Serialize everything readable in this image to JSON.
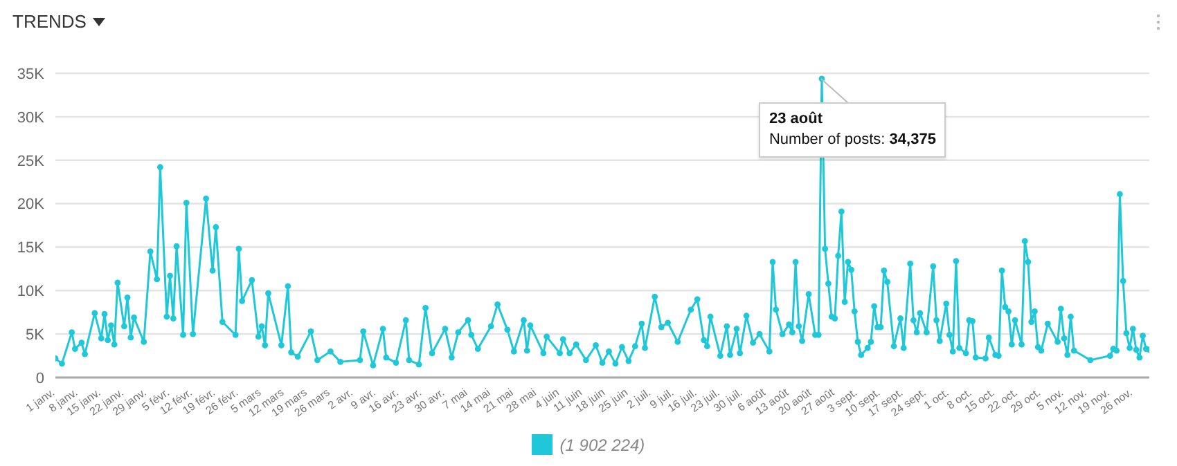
{
  "chart_data": {
    "type": "line",
    "title": "TRENDS",
    "xlim": [
      "--01-01",
      "--12-01"
    ],
    "xticks": [
      {
        "value": "--01-01",
        "label": "1 janv."
      },
      {
        "value": "--01-08",
        "label": "8 janv."
      },
      {
        "value": "--01-15",
        "label": "15 janv."
      },
      {
        "value": "--01-22",
        "label": "22 janv."
      },
      {
        "value": "--01-29",
        "label": "29 janv."
      },
      {
        "value": "--02-05",
        "label": "5 févr."
      },
      {
        "value": "--02-12",
        "label": "12 févr."
      },
      {
        "value": "--02-19",
        "label": "19 févr."
      },
      {
        "value": "--02-26",
        "label": "26 févr."
      },
      {
        "value": "--03-05",
        "label": "5 mars"
      },
      {
        "value": "--03-12",
        "label": "12 mars"
      },
      {
        "value": "--03-19",
        "label": "19 mars"
      },
      {
        "value": "--03-26",
        "label": "26 mars"
      },
      {
        "value": "--04-02",
        "label": "2 avr."
      },
      {
        "value": "--04-09",
        "label": "9 avr."
      },
      {
        "value": "--04-16",
        "label": "16 avr."
      },
      {
        "value": "--04-23",
        "label": "23 avr."
      },
      {
        "value": "--04-30",
        "label": "30 avr."
      },
      {
        "value": "--05-07",
        "label": "7 mai"
      },
      {
        "value": "--05-14",
        "label": "14 mai"
      },
      {
        "value": "--05-21",
        "label": "21 mai"
      },
      {
        "value": "--05-28",
        "label": "28 mai"
      },
      {
        "value": "--06-04",
        "label": "4 juin"
      },
      {
        "value": "--06-11",
        "label": "11 juin"
      },
      {
        "value": "--06-18",
        "label": "18 juin"
      },
      {
        "value": "--06-25",
        "label": "25 juin"
      },
      {
        "value": "--07-02",
        "label": "2 juil."
      },
      {
        "value": "--07-09",
        "label": "9 juil."
      },
      {
        "value": "--07-16",
        "label": "16 juil."
      },
      {
        "value": "--07-23",
        "label": "23 juil."
      },
      {
        "value": "--07-30",
        "label": "30 juil."
      },
      {
        "value": "--08-06",
        "label": "6 août"
      },
      {
        "value": "--08-13",
        "label": "13 août"
      },
      {
        "value": "--08-20",
        "label": "20 août"
      },
      {
        "value": "--08-27",
        "label": "27 août"
      },
      {
        "value": "--09-03",
        "label": "3 sept."
      },
      {
        "value": "--09-10",
        "label": "10 sept."
      },
      {
        "value": "--09-17",
        "label": "17 sept."
      },
      {
        "value": "--09-24",
        "label": "24 sept."
      },
      {
        "value": "--10-01",
        "label": "1 oct."
      },
      {
        "value": "--10-08",
        "label": "8 oct."
      },
      {
        "value": "--10-15",
        "label": "15 oct."
      },
      {
        "value": "--10-22",
        "label": "22 oct."
      },
      {
        "value": "--10-29",
        "label": "29 oct."
      },
      {
        "value": "--11-05",
        "label": "5 nov."
      },
      {
        "value": "--11-12",
        "label": "12 nov."
      },
      {
        "value": "--11-19",
        "label": "19 nov."
      },
      {
        "value": "--11-26",
        "label": "26 nov."
      }
    ],
    "ylim": [
      0,
      35000
    ],
    "yticks": [
      0,
      {
        "value": 5000,
        "label": "5K"
      },
      {
        "value": 10000,
        "label": "10K"
      },
      {
        "value": 15000,
        "label": "15K"
      },
      {
        "value": 20000,
        "label": "20K"
      },
      {
        "value": 25000,
        "label": "25K"
      },
      {
        "value": 30000,
        "label": "30K"
      },
      {
        "value": 35000,
        "label": "35K"
      }
    ],
    "grid": "y",
    "marker": "circle",
    "x": [
      "--01-01",
      "--01-03",
      "--01-06",
      "--01-07",
      "--01-09",
      "--01-10",
      "--01-13",
      "--01-15",
      "--01-16",
      "--01-17",
      "--01-18",
      "--01-19",
      "--01-20",
      "--01-22",
      "--01-23",
      "--01-24",
      "--01-25",
      "--01-28",
      "--01-30",
      "--02-01",
      "--02-02",
      "--02-04",
      "--02-05",
      "--02-06",
      "--02-07",
      "--02-09",
      "--02-10",
      "--02-12",
      "--02-16",
      "--02-18",
      "--02-19",
      "--02-21",
      "--02-25",
      "--02-26",
      "--02-27",
      "--03-02",
      "--03-04",
      "--03-05",
      "--03-06",
      "--03-07",
      "--03-11",
      "--03-13",
      "--03-14",
      "--03-16",
      "--03-20",
      "--03-22",
      "--03-26",
      "--03-29",
      "--04-04",
      "--04-05",
      "--04-08",
      "--04-11",
      "--04-12",
      "--04-15",
      "--04-18",
      "--04-19",
      "--04-22",
      "--04-24",
      "--04-26",
      "--04-30",
      "--05-02",
      "--05-04",
      "--05-07",
      "--05-08",
      "--05-10",
      "--05-14",
      "--05-16",
      "--05-19",
      "--05-21",
      "--05-24",
      "--05-25",
      "--05-26",
      "--05-30",
      "--05-31",
      "--06-04",
      "--06-05",
      "--06-07",
      "--06-09",
      "--06-12",
      "--06-15",
      "--06-17",
      "--06-19",
      "--06-21",
      "--06-23",
      "--06-25",
      "--06-27",
      "--06-29",
      "--06-30",
      "--07-03",
      "--07-05",
      "--07-07",
      "--07-10",
      "--07-14",
      "--07-16",
      "--07-18",
      "--07-19",
      "--07-20",
      "--07-23",
      "--07-25",
      "--07-26",
      "--07-28",
      "--07-29",
      "--07-31",
      "--08-02",
      "--08-04",
      "--08-07",
      "--08-08",
      "--08-09",
      "--08-11",
      "--08-13",
      "--08-14",
      "--08-15",
      "--08-16",
      "--08-17",
      "--08-19",
      "--08-21",
      "--08-22",
      "--08-23",
      "--08-24",
      "--08-25",
      "--08-26",
      "--08-27",
      "--08-28",
      "--08-29",
      "--08-30",
      "--08-31",
      "--09-01",
      "--09-02",
      "--09-03",
      "--09-04",
      "--09-06",
      "--09-07",
      "--09-08",
      "--09-09",
      "--09-10",
      "--09-11",
      "--09-12",
      "--09-14",
      "--09-16",
      "--09-17",
      "--09-19",
      "--09-20",
      "--09-21",
      "--09-22",
      "--09-24",
      "--09-26",
      "--09-27",
      "--09-28",
      "--09-30",
      "--10-01",
      "--10-02",
      "--10-03",
      "--10-04",
      "--10-06",
      "--10-07",
      "--10-08",
      "--10-09",
      "--10-12",
      "--10-13",
      "--10-15",
      "--10-16",
      "--10-17",
      "--10-18",
      "--10-19",
      "--10-20",
      "--10-21",
      "--10-23",
      "--10-24",
      "--10-25",
      "--10-26",
      "--10-27",
      "--10-28",
      "--10-29",
      "--10-31",
      "--11-03",
      "--11-04",
      "--11-05",
      "--11-06",
      "--11-07",
      "--11-08",
      "--11-13",
      "--11-19",
      "--11-20",
      "--11-21",
      "--11-22",
      "--11-23",
      "--11-24",
      "--11-25",
      "--11-26",
      "--11-27",
      "--11-28",
      "--11-29",
      "--11-30",
      "--12-01"
    ],
    "series": [
      {
        "color": "#1ec8d8",
        "values": [
          2200,
          1600,
          5200,
          3300,
          4000,
          2700,
          7400,
          4500,
          7300,
          4300,
          6000,
          3800,
          10900,
          5900,
          9200,
          4600,
          6900,
          4100,
          14500,
          11300,
          24200,
          7000,
          11700,
          6800,
          15100,
          4900,
          20100,
          5000,
          20600,
          12300,
          17300,
          6400,
          4900,
          14800,
          8800,
          11200,
          4700,
          5900,
          3700,
          9700,
          3700,
          10500,
          2900,
          2400,
          5300,
          2000,
          3000,
          1800,
          2000,
          5300,
          1400,
          5600,
          2300,
          1700,
          6600,
          2000,
          1500,
          8000,
          2800,
          5600,
          2300,
          5200,
          6600,
          4900,
          3300,
          5900,
          8400,
          5500,
          3000,
          6600,
          3100,
          6000,
          2800,
          4700,
          2800,
          4400,
          2800,
          3800,
          2000,
          3700,
          1700,
          3000,
          1600,
          3500,
          1900,
          3600,
          6200,
          3400,
          9300,
          5800,
          6300,
          4100,
          7800,
          9000,
          4300,
          3600,
          7000,
          2500,
          5900,
          2600,
          5600,
          2800,
          7100,
          4000,
          5000,
          3000,
          13300,
          7800,
          5000,
          6100,
          5200,
          13300,
          5900,
          4200,
          9600,
          4900,
          4900,
          34375,
          14800,
          10800,
          7000,
          6800,
          14000,
          19100,
          8700,
          13300,
          12400,
          7600,
          4100,
          2600,
          3400,
          4100,
          8200,
          5800,
          5800,
          12300,
          11000,
          3600,
          6800,
          3400,
          13100,
          6600,
          5200,
          7400,
          5200,
          12800,
          6600,
          4200,
          8500,
          4900,
          3000,
          13400,
          3400,
          2800,
          6600,
          6500,
          2300,
          2200,
          4600,
          2600,
          2500,
          12300,
          8100,
          7600,
          3800,
          6600,
          3800,
          15700,
          13300,
          6400,
          7600,
          3500,
          3100,
          6200,
          4100,
          7900,
          4500,
          2600,
          7000,
          3100,
          2000,
          2500,
          3300,
          3100,
          21100,
          11100,
          5100,
          3400,
          5600,
          3200,
          2300,
          4800,
          3300,
          3200
        ]
      }
    ],
    "annotations": [
      {
        "text": "23 août\nNumber of posts: 34,375",
        "x": "--08-23",
        "y": 34375
      },
      "(1 902 224)"
    ]
  }
}
